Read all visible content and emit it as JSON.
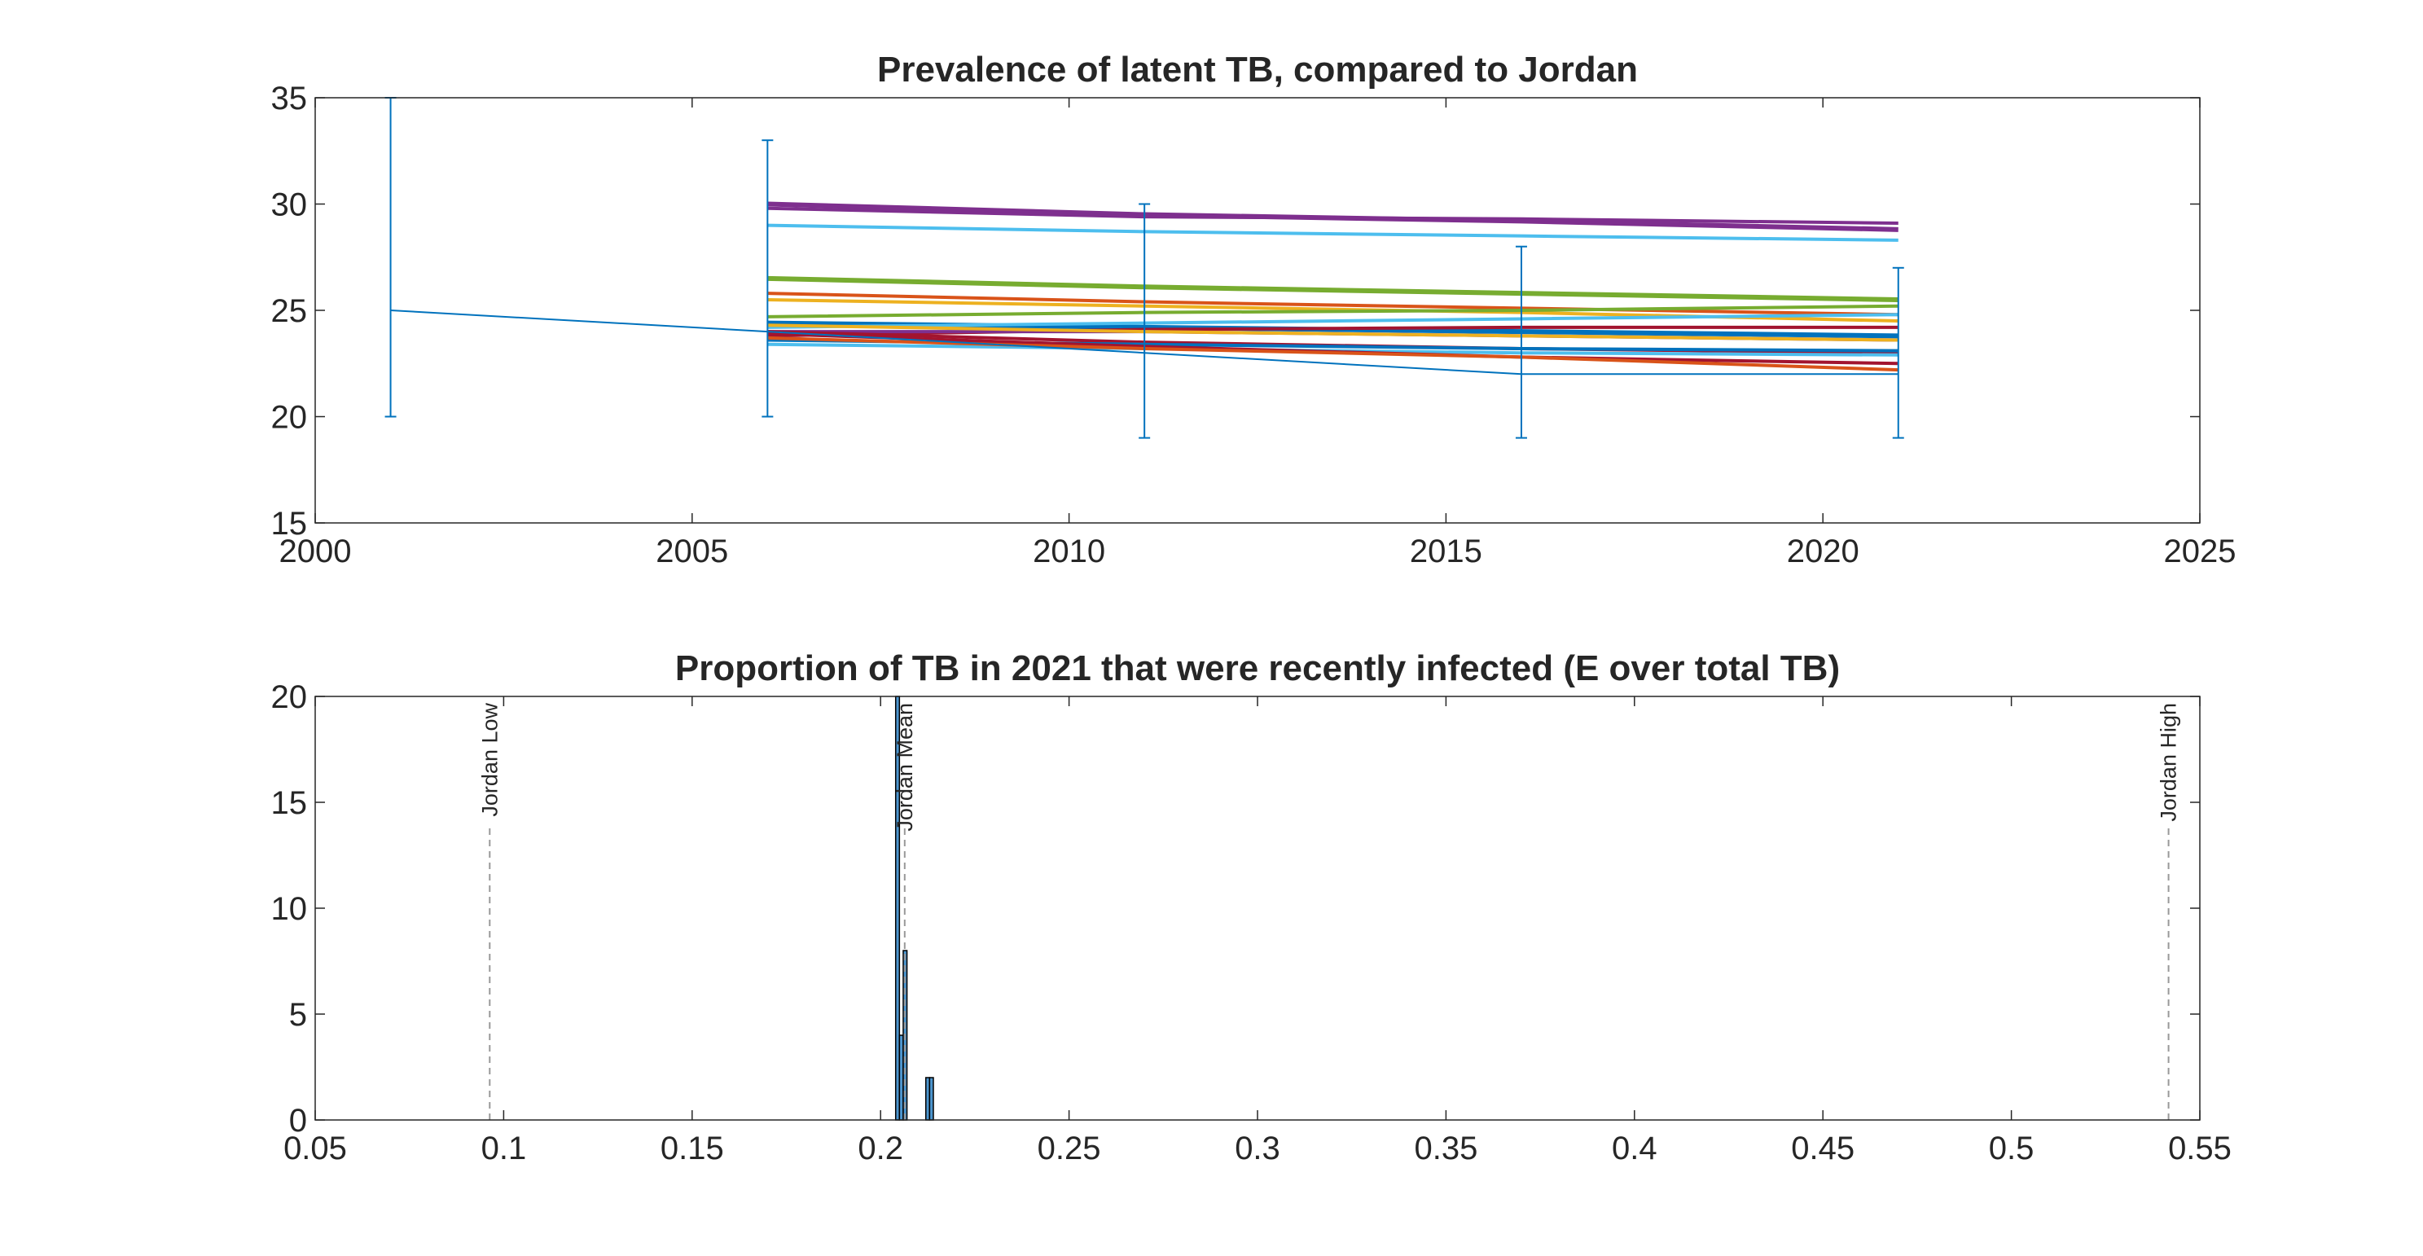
{
  "chart_data": [
    {
      "type": "line",
      "title": "Prevalence of latent TB, compared to Jordan",
      "x": [
        2006,
        2011,
        2016,
        2021
      ],
      "xlim": [
        2000,
        2025
      ],
      "xticks": [
        2000,
        2005,
        2010,
        2015,
        2020,
        2025
      ],
      "ylim": [
        15,
        35
      ],
      "yticks": [
        15,
        20,
        25,
        30,
        35
      ],
      "series": [
        {
          "color": "#7E2F8E",
          "width": 3,
          "values": [
            30,
            29.5,
            29.2,
            28.8
          ]
        },
        {
          "color": "#7E2F8E",
          "width": 2,
          "values": [
            29.8,
            29.4,
            29.3,
            29.1
          ]
        },
        {
          "color": "#4DBEEE",
          "width": 2,
          "values": [
            29,
            28.7,
            28.5,
            28.3
          ]
        },
        {
          "color": "#77AC30",
          "width": 3,
          "values": [
            26.5,
            26.1,
            25.8,
            25.5
          ]
        },
        {
          "color": "#D95319",
          "width": 2,
          "values": [
            25.8,
            25.4,
            25.1,
            24.8
          ]
        },
        {
          "color": "#EDB120",
          "width": 2,
          "values": [
            25.5,
            25.2,
            24.9,
            24.5
          ]
        },
        {
          "color": "#77AC30",
          "width": 2,
          "values": [
            24.7,
            24.9,
            25,
            25.2
          ]
        },
        {
          "color": "#0072BD",
          "width": 3,
          "values": [
            24.4,
            24.2,
            24,
            23.8
          ]
        },
        {
          "color": "#4DBEEE",
          "width": 2,
          "values": [
            24.2,
            24.4,
            24.6,
            24.8
          ]
        },
        {
          "color": "#A2142F",
          "width": 2,
          "values": [
            23.8,
            24.1,
            24.2,
            24.2
          ]
        },
        {
          "color": "#7E2F8E",
          "width": 2,
          "values": [
            24,
            24,
            23.8,
            23.6
          ]
        },
        {
          "color": "#EDB120",
          "width": 2,
          "values": [
            24.3,
            24,
            23.8,
            23.6
          ]
        },
        {
          "color": "#A2142F",
          "width": 2,
          "values": [
            24,
            23.5,
            23.2,
            23
          ]
        },
        {
          "color": "#0072BD",
          "width": 2,
          "values": [
            23.6,
            23.4,
            23.2,
            23.1
          ]
        },
        {
          "color": "#4DBEEE",
          "width": 2,
          "values": [
            23.4,
            23.2,
            23,
            22.9
          ]
        },
        {
          "color": "#A2142F",
          "width": 2,
          "values": [
            23.9,
            23.3,
            22.8,
            22.5
          ]
        },
        {
          "color": "#D95319",
          "width": 2,
          "values": [
            23.7,
            23.2,
            22.8,
            22.2
          ]
        },
        {
          "color": "#0072BD",
          "width": 1,
          "x": [
            2001,
            2006,
            2011,
            2016,
            2021
          ],
          "values": [
            25,
            24,
            23,
            22,
            22
          ],
          "lower": [
            20,
            20,
            19,
            19,
            19
          ],
          "upper": [
            35,
            33,
            30,
            28,
            27
          ]
        }
      ]
    },
    {
      "type": "histogram",
      "title": "Proportion of TB in 2021 that were recently infected (E over total TB)",
      "xlim": [
        0.05,
        0.55
      ],
      "xticks": [
        0.05,
        0.1,
        0.15,
        0.2,
        0.25,
        0.3,
        0.35,
        0.4,
        0.45,
        0.5,
        0.55
      ],
      "ylim": [
        0,
        20
      ],
      "yticks": [
        0,
        5,
        10,
        15,
        20
      ],
      "color": "#4d96cf",
      "bins": [
        0.204,
        0.205,
        0.206,
        0.207,
        0.208,
        0.209,
        0.21,
        0.211,
        0.212,
        0.213,
        0.214
      ],
      "counts": [
        20,
        4,
        8,
        0,
        0,
        0,
        0,
        0,
        2,
        2
      ],
      "reference_lines": [
        {
          "label": "Jordan Low",
          "value": 0.0963
        },
        {
          "label": "Jordan Mean",
          "value": 0.2064
        },
        {
          "label": "Jordan High",
          "value": 0.5417
        }
      ]
    }
  ]
}
